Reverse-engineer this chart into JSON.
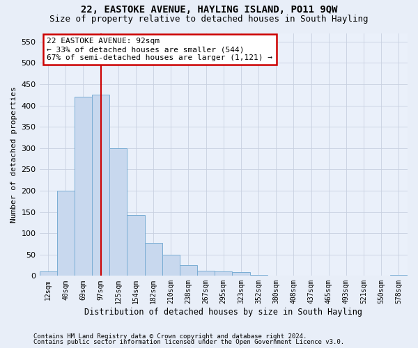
{
  "title1": "22, EASTOKE AVENUE, HAYLING ISLAND, PO11 9QW",
  "title2": "Size of property relative to detached houses in South Hayling",
  "xlabel": "Distribution of detached houses by size in South Hayling",
  "ylabel": "Number of detached properties",
  "bar_color": "#c8d8ee",
  "bar_edge_color": "#7aadd4",
  "categories": [
    "12sqm",
    "40sqm",
    "69sqm",
    "97sqm",
    "125sqm",
    "154sqm",
    "182sqm",
    "210sqm",
    "238sqm",
    "267sqm",
    "295sqm",
    "323sqm",
    "352sqm",
    "380sqm",
    "408sqm",
    "437sqm",
    "465sqm",
    "493sqm",
    "521sqm",
    "550sqm",
    "578sqm"
  ],
  "values": [
    10,
    200,
    420,
    425,
    300,
    143,
    77,
    50,
    25,
    12,
    10,
    8,
    2,
    1,
    1,
    0,
    0,
    0,
    0,
    0,
    2
  ],
  "ylim": [
    0,
    570
  ],
  "yticks": [
    0,
    50,
    100,
    150,
    200,
    250,
    300,
    350,
    400,
    450,
    500,
    550
  ],
  "red_line_x": 3.0,
  "annotation_text": "22 EASTOKE AVENUE: 92sqm\n← 33% of detached houses are smaller (544)\n67% of semi-detached houses are larger (1,121) →",
  "footnote1": "Contains HM Land Registry data © Crown copyright and database right 2024.",
  "footnote2": "Contains public sector information licensed under the Open Government Licence v3.0.",
  "background_color": "#e8eef8",
  "plot_bg_color": "#eaf0fa",
  "grid_color": "#c8d0e0",
  "annotation_box_color": "#ffffff",
  "annotation_box_edge": "#cc0000",
  "red_line_color": "#cc0000",
  "title1_fontsize": 10,
  "title2_fontsize": 9
}
